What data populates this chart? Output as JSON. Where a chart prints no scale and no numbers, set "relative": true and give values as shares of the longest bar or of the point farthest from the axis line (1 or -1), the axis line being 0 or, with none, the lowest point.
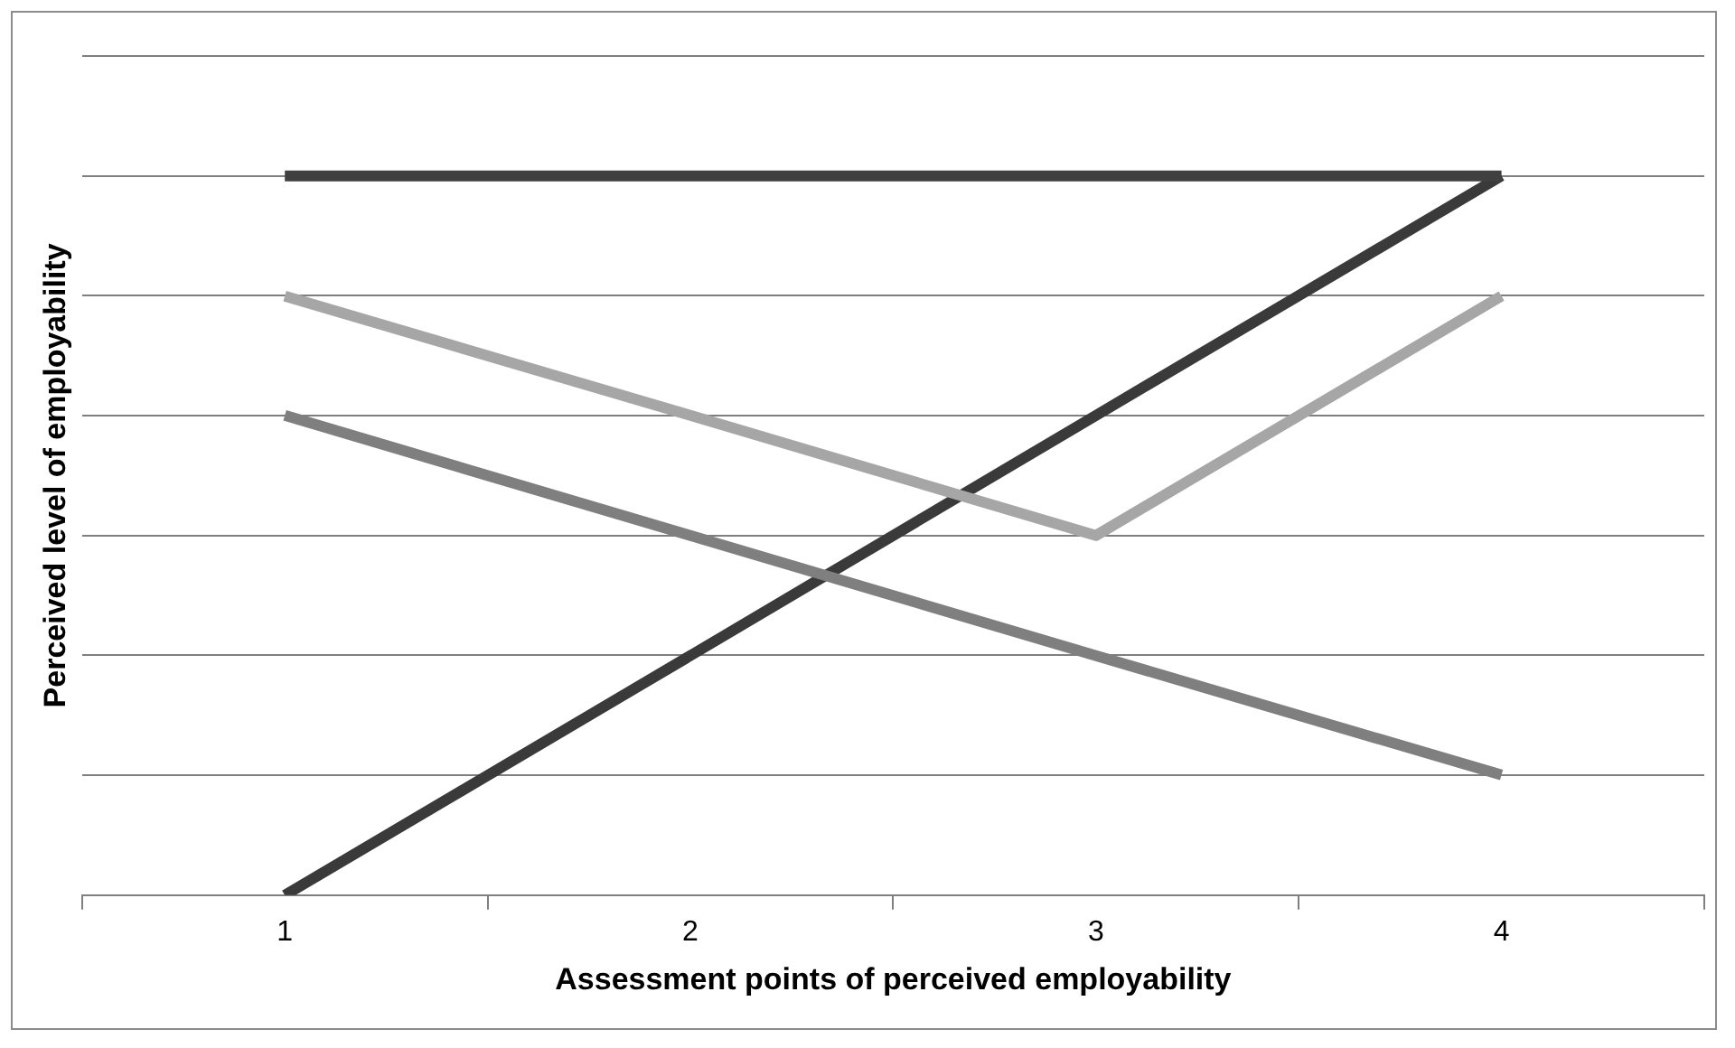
{
  "chart_data": {
    "type": "line",
    "xlabel": "Assessment points of perceived employability",
    "ylabel": "Perceived level of employability",
    "categories": [
      "1",
      "2",
      "3",
      "4"
    ],
    "relative": true,
    "grid": "y",
    "legend": false,
    "marker": "none",
    "line_style": "solid",
    "series": [
      {
        "color": "#404040",
        "values": [
          1,
          1,
          1,
          1
        ]
      },
      {
        "color": "#a6a6a6",
        "values": [
          0.833,
          0.667,
          0.5,
          0.833
        ]
      },
      {
        "color": "#7f7f7f",
        "values": [
          0.667,
          0.5,
          0.333,
          0.167
        ]
      },
      {
        "color": "#3a3a3a",
        "values": [
          0,
          0.333,
          0.667,
          1
        ]
      }
    ]
  }
}
